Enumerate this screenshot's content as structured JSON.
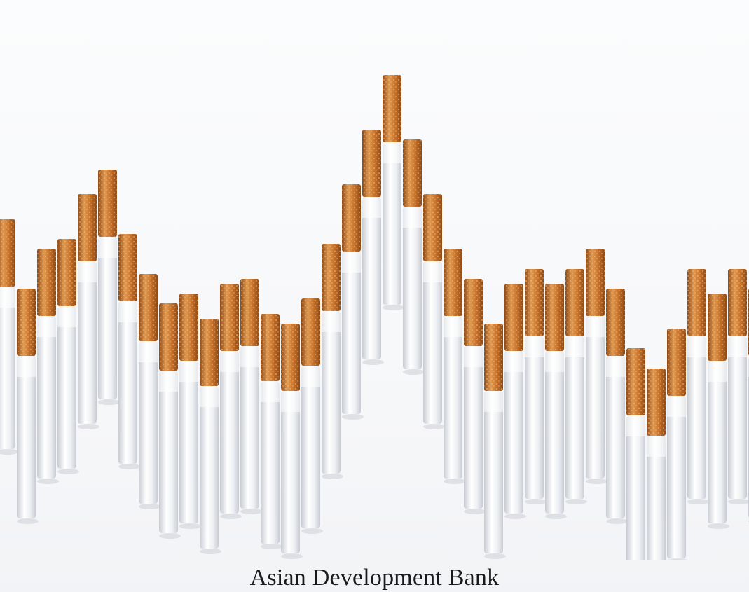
{
  "caption": "Asian Development Bank",
  "cigarette_levels": [
    0.63,
    0.49,
    0.57,
    0.59,
    0.68,
    0.73,
    0.6,
    0.52,
    0.46,
    0.48,
    0.43,
    0.5,
    0.51,
    0.44,
    0.42,
    0.47,
    0.58,
    0.7,
    0.81,
    0.92,
    0.79,
    0.68,
    0.57,
    0.51,
    0.42,
    0.5,
    0.53,
    0.5,
    0.53,
    0.57,
    0.49,
    0.37,
    0.33,
    0.41,
    0.53,
    0.48,
    0.53,
    0.49
  ],
  "colors": {
    "filter": "#c9732b",
    "filter_dark": "#8f4a17",
    "filter_light": "#e19a52",
    "paper": "#eef0f3",
    "paper_shade": "#c9ccd3",
    "background": "#f7f8fa"
  }
}
